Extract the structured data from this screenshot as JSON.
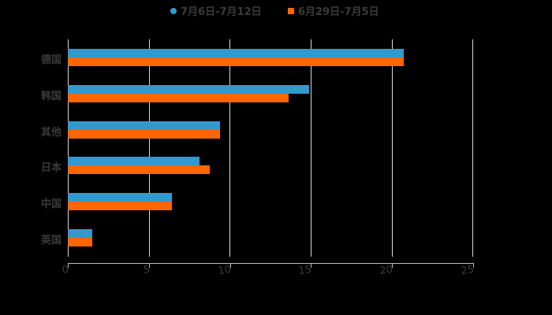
{
  "chart_data": {
    "type": "bar",
    "orientation": "horizontal",
    "title": "",
    "xlabel": "",
    "ylabel": "",
    "categories": [
      "德国",
      "韩国",
      "其他",
      "日本",
      "中国",
      "英国"
    ],
    "series": [
      {
        "name": "7月6日-7月12日",
        "color": "#3399cc",
        "values": [
          20.7,
          14.9,
          9.4,
          8.1,
          6.4,
          1.5
        ]
      },
      {
        "name": "6月29日-7月5日",
        "color": "#ff6600",
        "values": [
          20.7,
          13.6,
          9.4,
          8.75,
          6.4,
          1.5
        ]
      }
    ],
    "xlim": [
      0,
      25
    ],
    "xticks": [
      "0",
      "5",
      "10",
      "15",
      "20",
      "25"
    ],
    "grid": true,
    "legend_position": "top"
  },
  "legend": {
    "items": [
      {
        "label": "7月6日-7月12日",
        "color": "#3399cc",
        "shape": "circle"
      },
      {
        "label": "6月29日-7月5日",
        "color": "#ff6600",
        "shape": "square"
      }
    ]
  }
}
